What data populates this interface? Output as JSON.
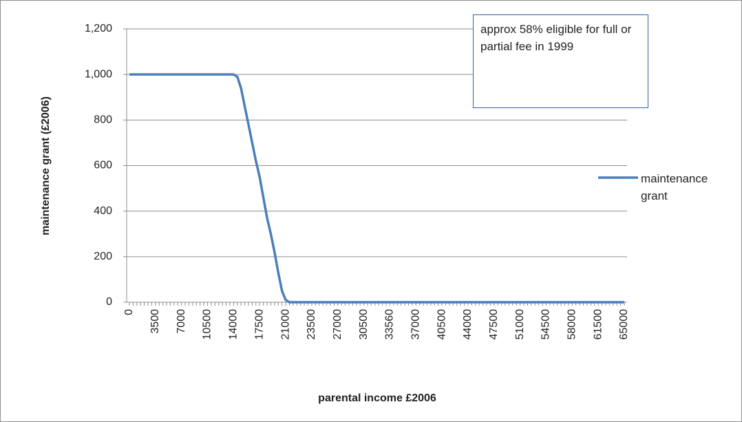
{
  "chart_data": {
    "type": "line",
    "ylabel": "maintenance grant (£2006)",
    "xlabel": "parental income £2006",
    "annotation": "approx 58% eligible for full or partial fee in 1999",
    "categories": [
      "0",
      null,
      null,
      null,
      null,
      null,
      null,
      "3500",
      null,
      null,
      null,
      null,
      null,
      null,
      "7000",
      null,
      null,
      null,
      null,
      null,
      null,
      "10500",
      null,
      null,
      null,
      null,
      null,
      null,
      "14000",
      null,
      null,
      null,
      null,
      null,
      null,
      "17500",
      null,
      null,
      null,
      null,
      null,
      null,
      "21000",
      null,
      null,
      null,
      null,
      null,
      null,
      "23500",
      null,
      null,
      null,
      null,
      null,
      null,
      "27000",
      null,
      null,
      null,
      null,
      null,
      null,
      "30500",
      null,
      null,
      null,
      null,
      null,
      null,
      "33560",
      null,
      null,
      null,
      null,
      null,
      null,
      "37000",
      null,
      null,
      null,
      null,
      null,
      null,
      "40500",
      null,
      null,
      null,
      null,
      null,
      null,
      "44000",
      null,
      null,
      null,
      null,
      null,
      null,
      "47500",
      null,
      null,
      null,
      null,
      null,
      null,
      "51000",
      null,
      null,
      null,
      null,
      null,
      null,
      "54500",
      null,
      null,
      null,
      null,
      null,
      null,
      "58000",
      null,
      null,
      null,
      null,
      null,
      null,
      "61500",
      null,
      null,
      null,
      null,
      null,
      null,
      "65000"
    ],
    "series": [
      {
        "name": "maintenance grant",
        "color": "#4a7ebb",
        "values": [
          1000,
          1000,
          1000,
          1000,
          1000,
          1000,
          1000,
          1000,
          1000,
          1000,
          1000,
          1000,
          1000,
          1000,
          1000,
          1000,
          1000,
          1000,
          1000,
          1000,
          1000,
          1000,
          1000,
          1000,
          1000,
          1000,
          1000,
          1000,
          1000,
          990,
          940,
          860,
          780,
          700,
          620,
          550,
          460,
          370,
          300,
          220,
          130,
          50,
          10,
          0,
          0,
          0,
          0,
          0,
          0,
          0,
          0,
          0,
          0,
          0,
          0,
          0,
          0,
          0,
          0,
          0,
          0,
          0,
          0,
          0,
          0,
          0,
          0,
          0,
          0,
          0,
          0,
          0,
          0,
          0,
          0,
          0,
          0,
          0,
          0,
          0,
          0,
          0,
          0,
          0,
          0,
          0,
          0,
          0,
          0,
          0,
          0,
          0,
          0,
          0,
          0,
          0,
          0,
          0,
          0,
          0,
          0,
          0,
          0,
          0,
          0,
          0,
          0,
          0,
          0,
          0,
          0,
          0,
          0,
          0,
          0,
          0,
          0,
          0,
          0,
          0,
          0,
          0,
          0,
          0,
          0,
          0,
          0,
          0,
          0,
          0,
          0,
          0,
          0,
          0
        ]
      }
    ],
    "ylim": [
      0,
      1200
    ],
    "yticks": [
      0,
      200,
      400,
      600,
      800,
      {
        "value": 1000,
        "label": "1,000"
      },
      {
        "value": 1200,
        "label": "1,200"
      }
    ],
    "grid": true,
    "legend": "right"
  }
}
